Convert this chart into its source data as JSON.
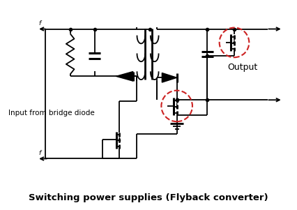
{
  "title": "Switching power supplies (Flyback converter)",
  "title_fontsize": 9.5,
  "output_label": "Output",
  "input_label": "Input from bridge diode",
  "bg_color": "#ffffff",
  "line_color": "#000000",
  "dashed_circle_color": "#cc2222",
  "lw": 1.3,
  "fig_w": 4.26,
  "fig_h": 3.01,
  "dpi": 100
}
